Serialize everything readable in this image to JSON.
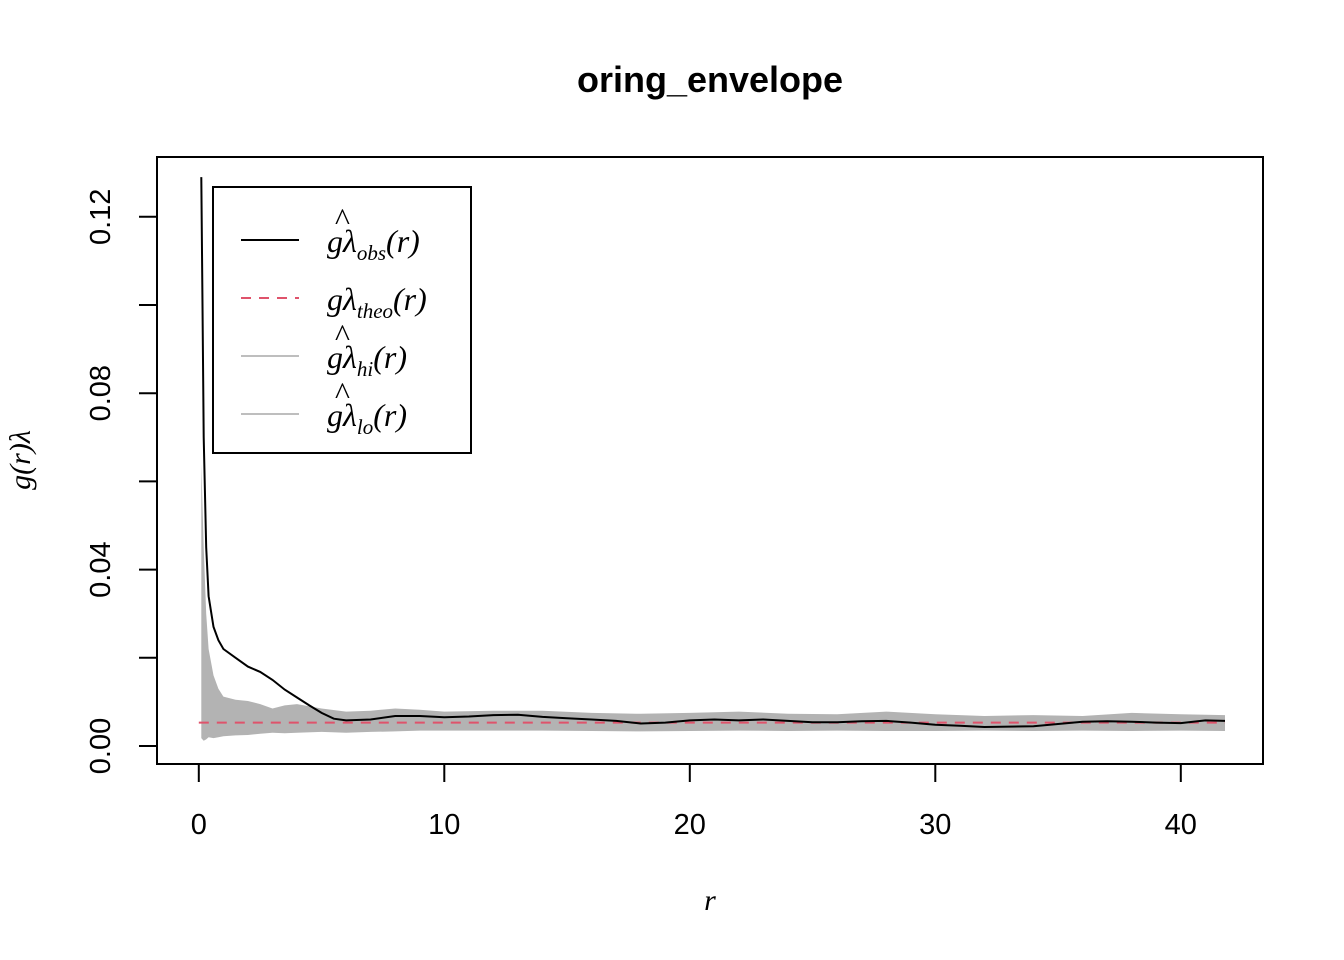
{
  "chart_data": {
    "type": "line",
    "title": "oring_envelope",
    "xlabel": "r",
    "ylabel": "g(r)λ",
    "xlim": [
      0,
      41.8
    ],
    "ylim": [
      0,
      0.13
    ],
    "xticks": [
      0,
      10,
      20,
      30,
      40
    ],
    "xtick_labels": [
      "0",
      "10",
      "20",
      "30",
      "40"
    ],
    "yticks": [
      0.0,
      0.02,
      0.04,
      0.06,
      0.08,
      0.1,
      0.12
    ],
    "ytick_labels": [
      "0.00",
      "",
      "0.04",
      "",
      "0.08",
      "",
      "0.12"
    ],
    "legend": {
      "position": "top-left",
      "entries": [
        {
          "base": "gλ",
          "hat": true,
          "sub": "obs",
          "color": "#000000",
          "dash": "solid"
        },
        {
          "base": "gλ",
          "hat": false,
          "sub": "theo",
          "color": "#DF536B",
          "dash": "dashed"
        },
        {
          "base": "gλ",
          "hat": true,
          "sub": "hi",
          "color": "#BEBEBE",
          "dash": "solid"
        },
        {
          "base": "gλ",
          "hat": true,
          "sub": "lo",
          "color": "#BEBEBE",
          "dash": "solid"
        }
      ]
    },
    "series": [
      {
        "name": "obs",
        "color": "#000000",
        "x": [
          0.1,
          0.15,
          0.2,
          0.3,
          0.4,
          0.6,
          0.8,
          1.0,
          1.5,
          2.0,
          2.5,
          3.0,
          3.5,
          4.0,
          4.5,
          5.0,
          5.5,
          6.0,
          7.0,
          8.0,
          9.0,
          10.0,
          11.0,
          12.0,
          13.0,
          14.0,
          15.0,
          16.0,
          17.0,
          18.0,
          19.0,
          20.0,
          21.0,
          22.0,
          23.0,
          24.0,
          25.0,
          26.0,
          27.0,
          28.0,
          29.0,
          30.0,
          31.0,
          32.0,
          33.0,
          34.0,
          35.0,
          36.0,
          37.0,
          38.0,
          39.0,
          40.0,
          41.0,
          41.8
        ],
        "values": [
          0.129,
          0.1,
          0.07,
          0.045,
          0.034,
          0.027,
          0.024,
          0.022,
          0.02,
          0.018,
          0.0168,
          0.015,
          0.0128,
          0.011,
          0.0092,
          0.0075,
          0.0062,
          0.0058,
          0.006,
          0.0068,
          0.0068,
          0.0065,
          0.0067,
          0.007,
          0.0071,
          0.0066,
          0.0063,
          0.006,
          0.0057,
          0.0051,
          0.0053,
          0.0058,
          0.006,
          0.0058,
          0.006,
          0.0057,
          0.0054,
          0.0054,
          0.0056,
          0.0057,
          0.0053,
          0.0048,
          0.0046,
          0.0043,
          0.0044,
          0.0045,
          0.005,
          0.0055,
          0.0056,
          0.0055,
          0.0053,
          0.0052,
          0.0058,
          0.0057
        ]
      },
      {
        "name": "theo",
        "color": "#DF536B",
        "x": [
          0.0,
          41.8
        ],
        "values": [
          0.0053,
          0.0053
        ]
      },
      {
        "name": "hi",
        "color": "#BEBEBE",
        "x": [
          0.1,
          0.2,
          0.3,
          0.4,
          0.6,
          0.8,
          1.0,
          1.5,
          2.0,
          2.5,
          3.0,
          3.5,
          4.0,
          5.0,
          6.0,
          7.0,
          8.0,
          9.0,
          10.0,
          12.0,
          14.0,
          16.0,
          18.0,
          20.0,
          22.0,
          24.0,
          26.0,
          28.0,
          30.0,
          32.0,
          34.0,
          36.0,
          38.0,
          40.0,
          41.8
        ],
        "values": [
          0.064,
          0.045,
          0.03,
          0.022,
          0.016,
          0.013,
          0.0112,
          0.0105,
          0.0102,
          0.0095,
          0.0085,
          0.0092,
          0.0095,
          0.0085,
          0.0078,
          0.008,
          0.0085,
          0.0082,
          0.0078,
          0.008,
          0.008,
          0.0075,
          0.0073,
          0.0075,
          0.0078,
          0.0073,
          0.0072,
          0.0078,
          0.0072,
          0.0068,
          0.007,
          0.0068,
          0.0075,
          0.0072,
          0.007
        ]
      },
      {
        "name": "lo",
        "color": "#BEBEBE",
        "x": [
          0.1,
          0.2,
          0.3,
          0.4,
          0.6,
          0.8,
          1.0,
          1.5,
          2.0,
          2.5,
          3.0,
          3.5,
          4.0,
          5.0,
          6.0,
          7.0,
          8.0,
          9.0,
          10.0,
          12.0,
          14.0,
          16.0,
          18.0,
          20.0,
          22.0,
          24.0,
          26.0,
          28.0,
          30.0,
          32.0,
          34.0,
          36.0,
          38.0,
          40.0,
          41.8
        ],
        "values": [
          0.0018,
          0.0012,
          0.0015,
          0.002,
          0.0018,
          0.002,
          0.0022,
          0.0024,
          0.0025,
          0.0028,
          0.003,
          0.0029,
          0.003,
          0.0032,
          0.003,
          0.0032,
          0.0033,
          0.0035,
          0.0035,
          0.0035,
          0.0035,
          0.0034,
          0.0033,
          0.0034,
          0.0035,
          0.0034,
          0.0035,
          0.0034,
          0.0034,
          0.0035,
          0.0034,
          0.0035,
          0.0034,
          0.0035,
          0.0034
        ]
      }
    ]
  }
}
